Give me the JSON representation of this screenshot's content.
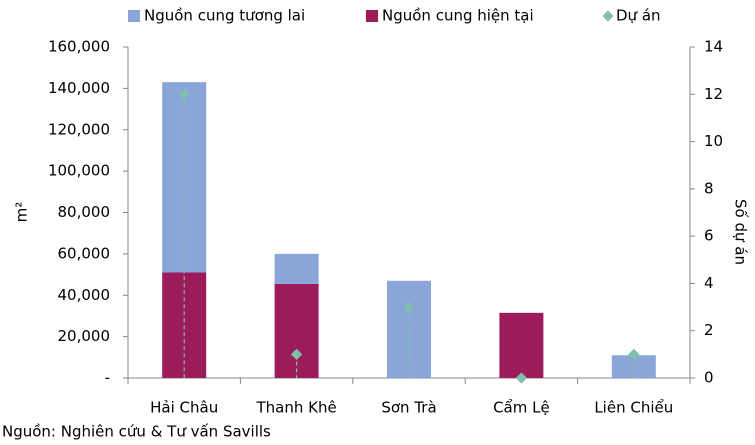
{
  "chart_data": {
    "type": "bar",
    "stacked": true,
    "categories": [
      "Hải Châu",
      "Thanh Khê",
      "Sơn Trà",
      "Cẩm Lệ",
      "Liên Chiểu"
    ],
    "series": [
      {
        "name": "Nguồn cung tương lai",
        "color": "#8aa6d9",
        "values": [
          92000,
          14500,
          47000,
          0,
          11000
        ]
      },
      {
        "name": "Nguồn cung hiện tại",
        "color": "#9c1b5b",
        "values": [
          51000,
          45500,
          0,
          31500,
          0
        ]
      },
      {
        "name": "Dự án",
        "color": "#7ec0a9",
        "type": "scatter",
        "axis": "y2",
        "values": [
          12,
          1,
          3,
          0,
          1
        ]
      }
    ],
    "stack_order": [
      1,
      0
    ],
    "y_label": "m²",
    "y2_label": "Số dự án",
    "source": "Nguồn: Nghiên cứu & Tư vấn Savills",
    "ylim": [
      0,
      160000
    ],
    "yticks": [
      {
        "value": 0,
        "label": "-"
      },
      {
        "value": 20000,
        "label": "20,000"
      },
      {
        "value": 40000,
        "label": "40,000"
      },
      {
        "value": 60000,
        "label": "60,000"
      },
      {
        "value": 80000,
        "label": "80,000"
      },
      {
        "value": 100000,
        "label": "100,000"
      },
      {
        "value": 120000,
        "label": "120,000"
      },
      {
        "value": 140000,
        "label": "140,000"
      },
      {
        "value": 160000,
        "label": "160,000"
      }
    ],
    "y2lim": [
      0,
      14
    ],
    "y2ticks": [
      0,
      2,
      4,
      6,
      8,
      10,
      12,
      14
    ],
    "legend": "top"
  }
}
